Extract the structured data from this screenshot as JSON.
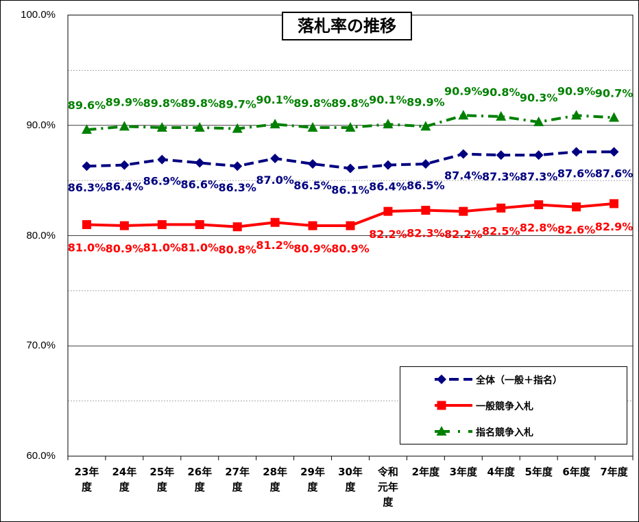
{
  "chart_data": {
    "type": "line",
    "title": "落札率の推移",
    "categories": [
      "23年度",
      "24年度",
      "25年度",
      "26年度",
      "27年度",
      "28年度",
      "29年度",
      "30年度",
      "令和元年度",
      "2年度",
      "3年度",
      "4年度",
      "5年度",
      "6年度",
      "7年度"
    ],
    "ylim": [
      60,
      100
    ],
    "yticks": [
      "60.0%",
      "70.0%",
      "80.0%",
      "90.0%",
      "100.0%"
    ],
    "grid": true,
    "legend_position": "bottom-right",
    "series": [
      {
        "name": "全体（一般＋指名）",
        "color": "#000080",
        "marker": "diamond",
        "dash": "dashed",
        "values": [
          86.3,
          86.4,
          86.9,
          86.6,
          86.3,
          87.0,
          86.5,
          86.1,
          86.4,
          86.5,
          87.4,
          87.3,
          87.3,
          87.6,
          87.6
        ]
      },
      {
        "name": "一般競争入札",
        "color": "#ff0000",
        "marker": "square",
        "dash": "solid",
        "values": [
          81.0,
          80.9,
          81.0,
          81.0,
          80.8,
          81.2,
          80.9,
          80.9,
          82.2,
          82.3,
          82.2,
          82.5,
          82.8,
          82.6,
          82.9
        ]
      },
      {
        "name": "指名競争入札",
        "color": "#008000",
        "marker": "triangle",
        "dash": "dashdot",
        "values": [
          89.6,
          89.9,
          89.8,
          89.8,
          89.7,
          90.1,
          89.8,
          89.8,
          90.1,
          89.9,
          90.9,
          90.8,
          90.3,
          90.9,
          90.7
        ]
      }
    ]
  }
}
